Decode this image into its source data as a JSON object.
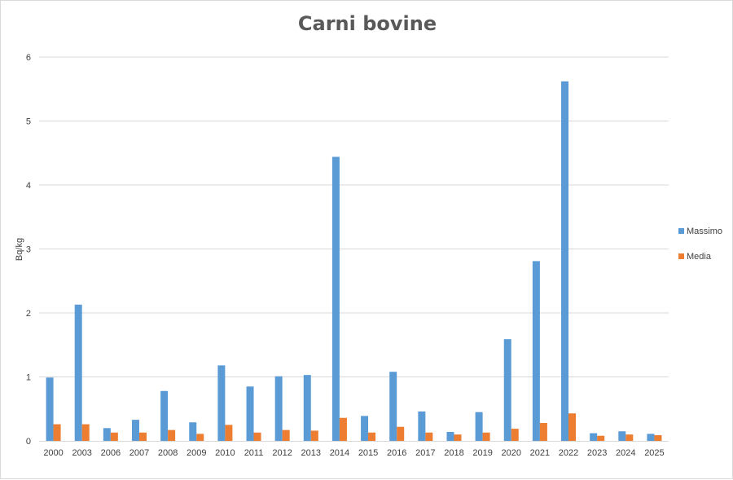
{
  "chart_data": {
    "type": "bar",
    "title": "Carni bovine",
    "xlabel": "",
    "ylabel": "Bq/kg",
    "ylim": [
      0,
      6
    ],
    "yticks": [
      0,
      1,
      2,
      3,
      4,
      5,
      6
    ],
    "grid": true,
    "legend_position": "right",
    "categories": [
      "2000",
      "2003",
      "2006",
      "2007",
      "2008",
      "2009",
      "2010",
      "2011",
      "2012",
      "2013",
      "2014",
      "2015",
      "2016",
      "2017",
      "2018",
      "2019",
      "2020",
      "2021",
      "2022",
      "2023",
      "2024",
      "2025"
    ],
    "series": [
      {
        "name": "Massimo",
        "color": "#5b9bd5",
        "values": [
          0.99,
          2.13,
          0.2,
          0.33,
          0.78,
          0.29,
          1.18,
          0.85,
          1.01,
          1.03,
          4.44,
          0.39,
          1.08,
          0.46,
          0.14,
          0.45,
          1.59,
          2.81,
          5.62,
          0.12,
          0.15,
          0.11
        ]
      },
      {
        "name": "Media",
        "color": "#ed7d31",
        "values": [
          0.26,
          0.26,
          0.13,
          0.13,
          0.17,
          0.11,
          0.25,
          0.13,
          0.17,
          0.16,
          0.36,
          0.13,
          0.22,
          0.13,
          0.1,
          0.13,
          0.19,
          0.28,
          0.43,
          0.08,
          0.1,
          0.09
        ]
      }
    ]
  }
}
